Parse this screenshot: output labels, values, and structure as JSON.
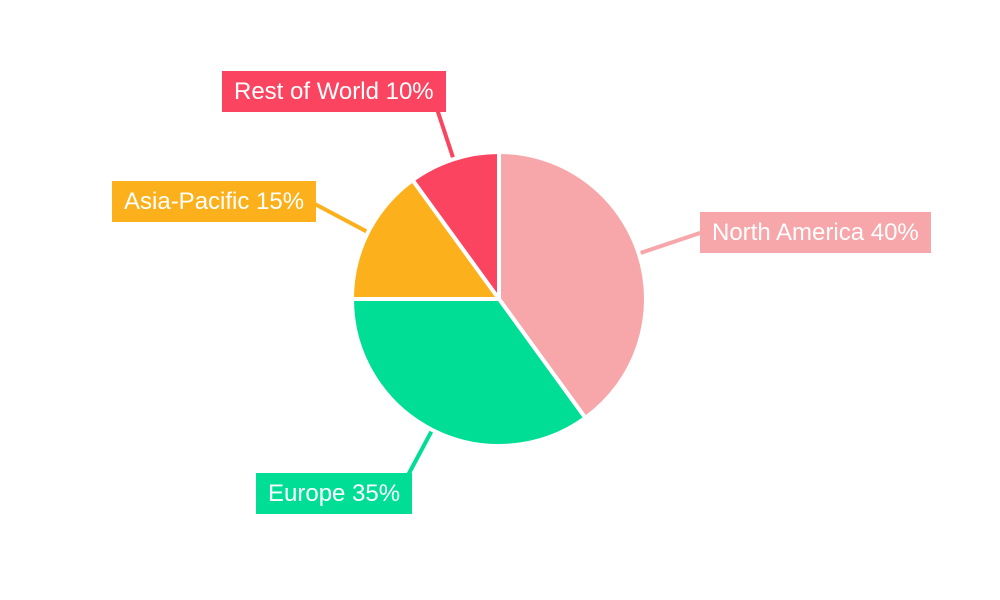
{
  "chart_data": {
    "type": "pie",
    "title": "",
    "total": 100,
    "start_angle_deg": 0,
    "direction": "clockwise",
    "background_color": "#FFFFFF",
    "label_text_color": "#FFFFFF",
    "slices": [
      {
        "label": "North America",
        "value": 40,
        "display_label": "North America 40%",
        "color": "#F7A6A9"
      },
      {
        "label": "Europe",
        "value": 35,
        "display_label": "Europe 35%",
        "color": "#00DE96"
      },
      {
        "label": "Asia-Pacific",
        "value": 15,
        "display_label": "Asia-Pacific 15%",
        "color": "#FCB11C"
      },
      {
        "label": "Rest of World",
        "value": 10,
        "display_label": "Rest of World 10%",
        "color": "#FB4560"
      }
    ]
  }
}
